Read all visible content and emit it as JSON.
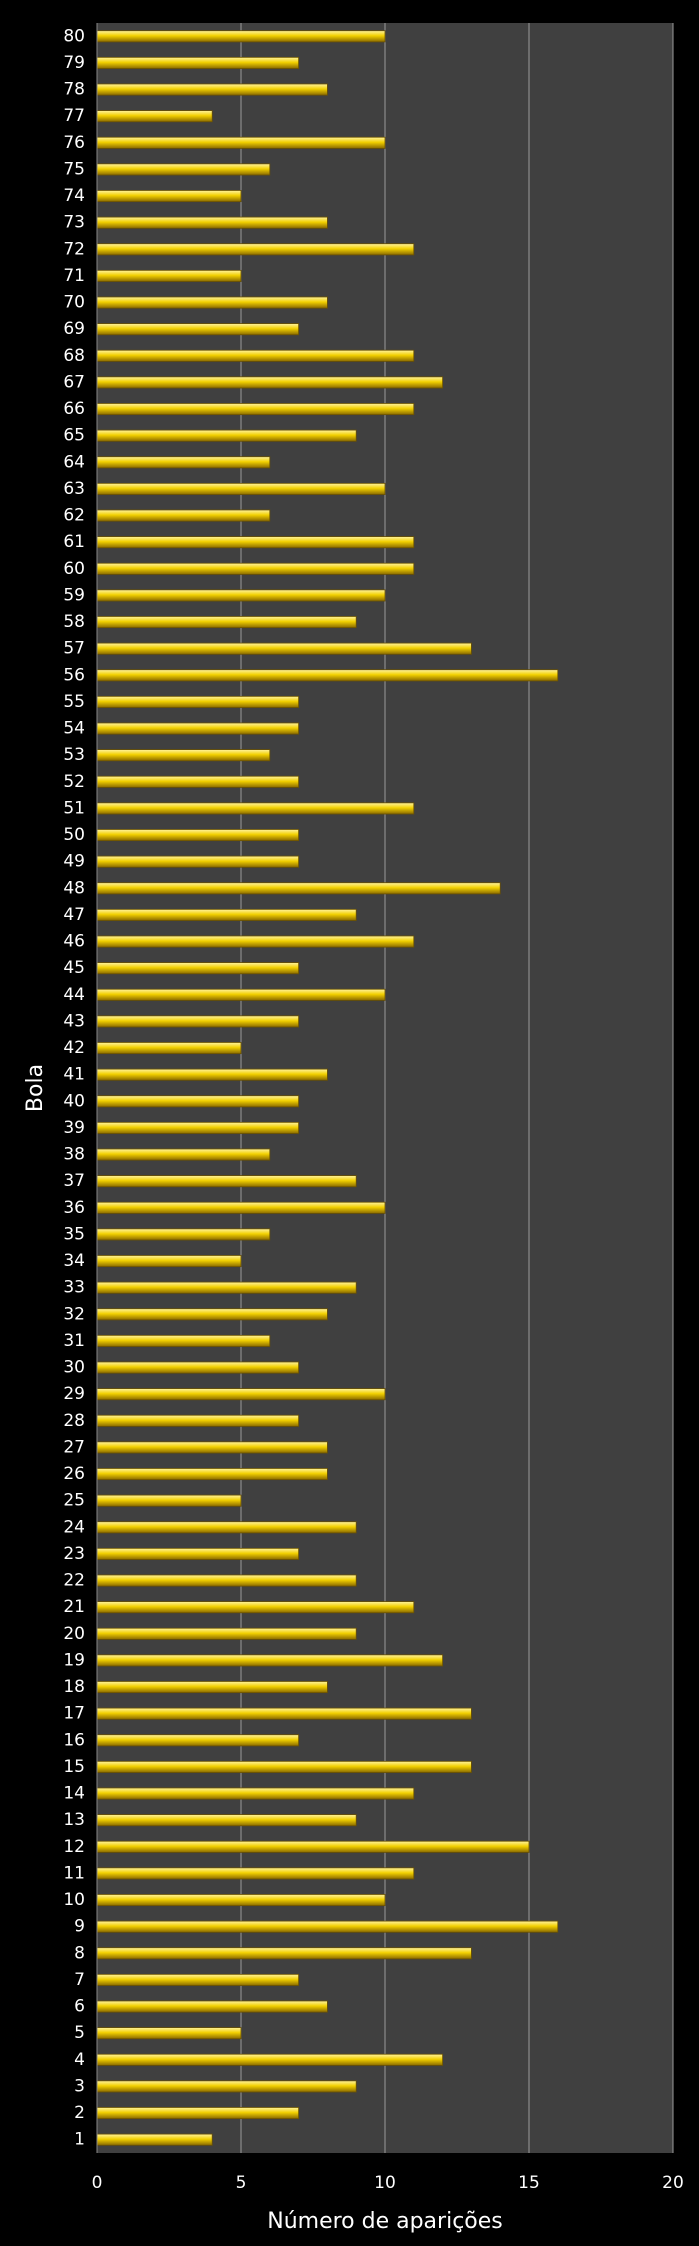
{
  "chart_data": {
    "type": "barh",
    "ylabel": "Bola",
    "xlabel": "Número de aparições",
    "categories": [
      "1",
      "2",
      "3",
      "4",
      "5",
      "6",
      "7",
      "8",
      "9",
      "10",
      "11",
      "12",
      "13",
      "14",
      "15",
      "16",
      "17",
      "18",
      "19",
      "20",
      "21",
      "22",
      "23",
      "24",
      "25",
      "26",
      "27",
      "28",
      "29",
      "30",
      "31",
      "32",
      "33",
      "34",
      "35",
      "36",
      "37",
      "38",
      "39",
      "40",
      "41",
      "42",
      "43",
      "44",
      "45",
      "46",
      "47",
      "48",
      "49",
      "50",
      "51",
      "52",
      "53",
      "54",
      "55",
      "56",
      "57",
      "58",
      "59",
      "60",
      "61",
      "62",
      "63",
      "64",
      "65",
      "66",
      "67",
      "68",
      "69",
      "70",
      "71",
      "72",
      "73",
      "74",
      "75",
      "76",
      "77",
      "78",
      "79",
      "80"
    ],
    "values": [
      4,
      7,
      9,
      12,
      5,
      8,
      7,
      13,
      16,
      10,
      11,
      15,
      9,
      11,
      13,
      7,
      13,
      8,
      12,
      9,
      11,
      9,
      7,
      9,
      5,
      8,
      8,
      7,
      10,
      7,
      6,
      8,
      9,
      5,
      6,
      10,
      9,
      6,
      7,
      7,
      8,
      5,
      7,
      10,
      7,
      11,
      9,
      14,
      7,
      7,
      11,
      7,
      6,
      7,
      7,
      16,
      13,
      9,
      10,
      11,
      11,
      6,
      10,
      6,
      9,
      11,
      12,
      11,
      7,
      8,
      5,
      11,
      8,
      5,
      6,
      10,
      4,
      8,
      7,
      10
    ],
    "color": "#f2d000",
    "xlim": [
      0,
      20
    ],
    "xticks": [
      0,
      5,
      10,
      15,
      20
    ],
    "grid": true
  }
}
